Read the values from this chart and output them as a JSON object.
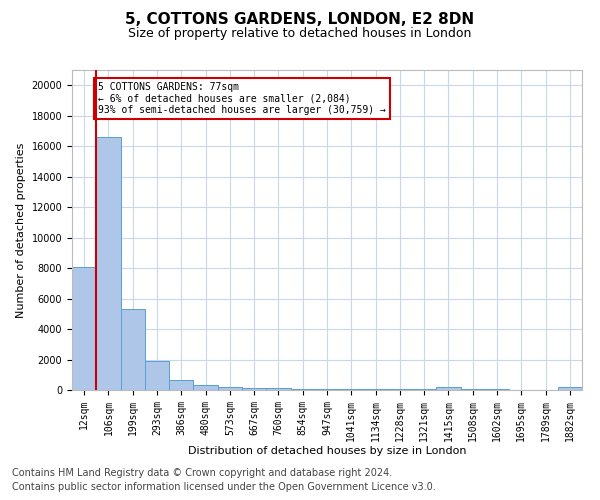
{
  "title": "5, COTTONS GARDENS, LONDON, E2 8DN",
  "subtitle": "Size of property relative to detached houses in London",
  "xlabel": "Distribution of detached houses by size in London",
  "ylabel": "Number of detached properties",
  "bar_color": "#aec6e8",
  "bar_edge_color": "#5a9fd4",
  "background_color": "#ffffff",
  "grid_color": "#c8d8e8",
  "categories": [
    "12sqm",
    "106sqm",
    "199sqm",
    "293sqm",
    "386sqm",
    "480sqm",
    "573sqm",
    "667sqm",
    "760sqm",
    "854sqm",
    "947sqm",
    "1041sqm",
    "1134sqm",
    "1228sqm",
    "1321sqm",
    "1415sqm",
    "1508sqm",
    "1602sqm",
    "1695sqm",
    "1789sqm",
    "1882sqm"
  ],
  "values": [
    8100,
    16600,
    5300,
    1900,
    650,
    330,
    220,
    160,
    110,
    90,
    75,
    65,
    55,
    50,
    45,
    200,
    40,
    35,
    30,
    25,
    180
  ],
  "ylim": [
    0,
    21000
  ],
  "yticks": [
    0,
    2000,
    4000,
    6000,
    8000,
    10000,
    12000,
    14000,
    16000,
    18000,
    20000
  ],
  "property_line_color": "#cc0000",
  "annotation_text": "5 COTTONS GARDENS: 77sqm\n← 6% of detached houses are smaller (2,084)\n93% of semi-detached houses are larger (30,759) →",
  "annotation_box_color": "#cc0000",
  "footer_line1": "Contains HM Land Registry data © Crown copyright and database right 2024.",
  "footer_line2": "Contains public sector information licensed under the Open Government Licence v3.0.",
  "title_fontsize": 11,
  "subtitle_fontsize": 9,
  "label_fontsize": 8,
  "tick_fontsize": 7,
  "footer_fontsize": 7
}
